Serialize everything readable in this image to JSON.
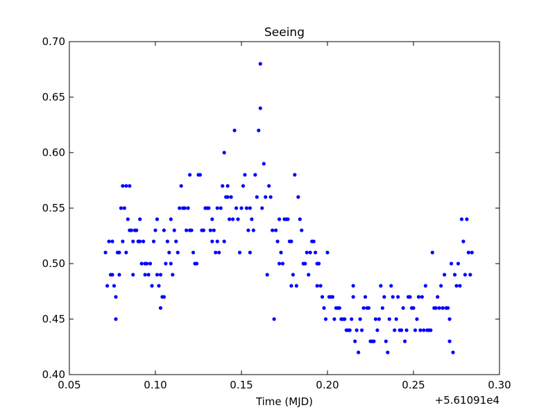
{
  "chart_data": {
    "type": "scatter",
    "title": "Seeing",
    "xlabel": "Time (MJD)",
    "ylabel": "",
    "x_offset_label": "+5.61091e4",
    "xlim": [
      0.05,
      0.3
    ],
    "ylim": [
      0.4,
      0.7
    ],
    "xticks": [
      0.05,
      0.1,
      0.15,
      0.2,
      0.25,
      0.3
    ],
    "yticks": [
      0.4,
      0.45,
      0.5,
      0.55,
      0.6,
      0.65,
      0.7
    ],
    "xtick_labels": [
      "0.05",
      "0.10",
      "0.15",
      "0.20",
      "0.25",
      "0.30"
    ],
    "ytick_labels": [
      "0.40",
      "0.45",
      "0.50",
      "0.55",
      "0.60",
      "0.65",
      "0.70"
    ],
    "grid": false,
    "marker_color": "#0000ff",
    "series": [
      {
        "points": [
          [
            0.071,
            0.51
          ],
          [
            0.072,
            0.48
          ],
          [
            0.073,
            0.52
          ],
          [
            0.074,
            0.49
          ],
          [
            0.075,
            0.49
          ],
          [
            0.075,
            0.52
          ],
          [
            0.076,
            0.48
          ],
          [
            0.077,
            0.45
          ],
          [
            0.077,
            0.47
          ],
          [
            0.078,
            0.51
          ],
          [
            0.079,
            0.49
          ],
          [
            0.079,
            0.51
          ],
          [
            0.08,
            0.55
          ],
          [
            0.081,
            0.57
          ],
          [
            0.081,
            0.52
          ],
          [
            0.082,
            0.55
          ],
          [
            0.083,
            0.51
          ],
          [
            0.083,
            0.57
          ],
          [
            0.084,
            0.54
          ],
          [
            0.085,
            0.53
          ],
          [
            0.085,
            0.57
          ],
          [
            0.086,
            0.53
          ],
          [
            0.087,
            0.52
          ],
          [
            0.087,
            0.49
          ],
          [
            0.088,
            0.53
          ],
          [
            0.089,
            0.53
          ],
          [
            0.09,
            0.52
          ],
          [
            0.091,
            0.52
          ],
          [
            0.091,
            0.54
          ],
          [
            0.092,
            0.5
          ],
          [
            0.093,
            0.52
          ],
          [
            0.094,
            0.5
          ],
          [
            0.094,
            0.49
          ],
          [
            0.095,
            0.5
          ],
          [
            0.096,
            0.49
          ],
          [
            0.097,
            0.5
          ],
          [
            0.098,
            0.48
          ],
          [
            0.099,
            0.52
          ],
          [
            0.1,
            0.53
          ],
          [
            0.101,
            0.54
          ],
          [
            0.101,
            0.49
          ],
          [
            0.102,
            0.48
          ],
          [
            0.103,
            0.49
          ],
          [
            0.103,
            0.46
          ],
          [
            0.104,
            0.47
          ],
          [
            0.105,
            0.53
          ],
          [
            0.105,
            0.47
          ],
          [
            0.106,
            0.5
          ],
          [
            0.107,
            0.52
          ],
          [
            0.108,
            0.51
          ],
          [
            0.109,
            0.5
          ],
          [
            0.109,
            0.54
          ],
          [
            0.11,
            0.49
          ],
          [
            0.111,
            0.53
          ],
          [
            0.112,
            0.52
          ],
          [
            0.113,
            0.51
          ],
          [
            0.114,
            0.55
          ],
          [
            0.115,
            0.57
          ],
          [
            0.116,
            0.55
          ],
          [
            0.117,
            0.55
          ],
          [
            0.118,
            0.53
          ],
          [
            0.119,
            0.55
          ],
          [
            0.12,
            0.53
          ],
          [
            0.12,
            0.58
          ],
          [
            0.121,
            0.53
          ],
          [
            0.122,
            0.51
          ],
          [
            0.123,
            0.5
          ],
          [
            0.124,
            0.5
          ],
          [
            0.125,
            0.58
          ],
          [
            0.126,
            0.58
          ],
          [
            0.127,
            0.53
          ],
          [
            0.128,
            0.53
          ],
          [
            0.129,
            0.55
          ],
          [
            0.13,
            0.55
          ],
          [
            0.131,
            0.55
          ],
          [
            0.132,
            0.53
          ],
          [
            0.133,
            0.52
          ],
          [
            0.133,
            0.54
          ],
          [
            0.134,
            0.53
          ],
          [
            0.135,
            0.51
          ],
          [
            0.136,
            0.52
          ],
          [
            0.136,
            0.55
          ],
          [
            0.137,
            0.51
          ],
          [
            0.138,
            0.55
          ],
          [
            0.139,
            0.57
          ],
          [
            0.14,
            0.52
          ],
          [
            0.14,
            0.6
          ],
          [
            0.141,
            0.56
          ],
          [
            0.142,
            0.57
          ],
          [
            0.142,
            0.56
          ],
          [
            0.143,
            0.54
          ],
          [
            0.144,
            0.56
          ],
          [
            0.145,
            0.54
          ],
          [
            0.146,
            0.62
          ],
          [
            0.147,
            0.55
          ],
          [
            0.148,
            0.54
          ],
          [
            0.149,
            0.51
          ],
          [
            0.15,
            0.55
          ],
          [
            0.151,
            0.57
          ],
          [
            0.152,
            0.58
          ],
          [
            0.153,
            0.55
          ],
          [
            0.154,
            0.53
          ],
          [
            0.155,
            0.55
          ],
          [
            0.155,
            0.51
          ],
          [
            0.156,
            0.54
          ],
          [
            0.157,
            0.53
          ],
          [
            0.158,
            0.58
          ],
          [
            0.159,
            0.56
          ],
          [
            0.16,
            0.62
          ],
          [
            0.161,
            0.68
          ],
          [
            0.161,
            0.64
          ],
          [
            0.162,
            0.55
          ],
          [
            0.163,
            0.59
          ],
          [
            0.164,
            0.56
          ],
          [
            0.165,
            0.49
          ],
          [
            0.166,
            0.57
          ],
          [
            0.167,
            0.56
          ],
          [
            0.168,
            0.53
          ],
          [
            0.169,
            0.45
          ],
          [
            0.17,
            0.53
          ],
          [
            0.171,
            0.52
          ],
          [
            0.172,
            0.5
          ],
          [
            0.172,
            0.54
          ],
          [
            0.173,
            0.51
          ],
          [
            0.174,
            0.5
          ],
          [
            0.175,
            0.54
          ],
          [
            0.176,
            0.54
          ],
          [
            0.177,
            0.54
          ],
          [
            0.178,
            0.52
          ],
          [
            0.179,
            0.52
          ],
          [
            0.179,
            0.48
          ],
          [
            0.18,
            0.49
          ],
          [
            0.181,
            0.58
          ],
          [
            0.182,
            0.48
          ],
          [
            0.183,
            0.56
          ],
          [
            0.184,
            0.54
          ],
          [
            0.185,
            0.53
          ],
          [
            0.186,
            0.5
          ],
          [
            0.187,
            0.5
          ],
          [
            0.188,
            0.51
          ],
          [
            0.189,
            0.49
          ],
          [
            0.19,
            0.51
          ],
          [
            0.191,
            0.52
          ],
          [
            0.192,
            0.52
          ],
          [
            0.193,
            0.51
          ],
          [
            0.194,
            0.5
          ],
          [
            0.194,
            0.48
          ],
          [
            0.195,
            0.5
          ],
          [
            0.196,
            0.48
          ],
          [
            0.197,
            0.47
          ],
          [
            0.198,
            0.46
          ],
          [
            0.199,
            0.45
          ],
          [
            0.2,
            0.51
          ],
          [
            0.201,
            0.47
          ],
          [
            0.202,
            0.47
          ],
          [
            0.203,
            0.47
          ],
          [
            0.204,
            0.45
          ],
          [
            0.205,
            0.46
          ],
          [
            0.206,
            0.46
          ],
          [
            0.207,
            0.46
          ],
          [
            0.208,
            0.45
          ],
          [
            0.209,
            0.45
          ],
          [
            0.21,
            0.45
          ],
          [
            0.211,
            0.44
          ],
          [
            0.212,
            0.44
          ],
          [
            0.213,
            0.44
          ],
          [
            0.214,
            0.45
          ],
          [
            0.215,
            0.47
          ],
          [
            0.215,
            0.48
          ],
          [
            0.216,
            0.43
          ],
          [
            0.217,
            0.44
          ],
          [
            0.218,
            0.42
          ],
          [
            0.219,
            0.45
          ],
          [
            0.22,
            0.44
          ],
          [
            0.221,
            0.46
          ],
          [
            0.222,
            0.47
          ],
          [
            0.223,
            0.46
          ],
          [
            0.224,
            0.46
          ],
          [
            0.225,
            0.43
          ],
          [
            0.226,
            0.43
          ],
          [
            0.227,
            0.43
          ],
          [
            0.228,
            0.45
          ],
          [
            0.229,
            0.44
          ],
          [
            0.23,
            0.45
          ],
          [
            0.231,
            0.48
          ],
          [
            0.232,
            0.46
          ],
          [
            0.233,
            0.47
          ],
          [
            0.234,
            0.43
          ],
          [
            0.235,
            0.42
          ],
          [
            0.236,
            0.45
          ],
          [
            0.237,
            0.48
          ],
          [
            0.238,
            0.47
          ],
          [
            0.239,
            0.44
          ],
          [
            0.24,
            0.45
          ],
          [
            0.241,
            0.47
          ],
          [
            0.242,
            0.44
          ],
          [
            0.243,
            0.44
          ],
          [
            0.244,
            0.46
          ],
          [
            0.245,
            0.43
          ],
          [
            0.246,
            0.44
          ],
          [
            0.247,
            0.47
          ],
          [
            0.248,
            0.47
          ],
          [
            0.249,
            0.46
          ],
          [
            0.25,
            0.46
          ],
          [
            0.251,
            0.44
          ],
          [
            0.252,
            0.45
          ],
          [
            0.253,
            0.47
          ],
          [
            0.254,
            0.44
          ],
          [
            0.255,
            0.47
          ],
          [
            0.256,
            0.44
          ],
          [
            0.257,
            0.48
          ],
          [
            0.258,
            0.44
          ],
          [
            0.259,
            0.44
          ],
          [
            0.26,
            0.44
          ],
          [
            0.261,
            0.51
          ],
          [
            0.262,
            0.46
          ],
          [
            0.263,
            0.46
          ],
          [
            0.264,
            0.47
          ],
          [
            0.265,
            0.46
          ],
          [
            0.266,
            0.48
          ],
          [
            0.267,
            0.46
          ],
          [
            0.268,
            0.49
          ],
          [
            0.269,
            0.46
          ],
          [
            0.27,
            0.46
          ],
          [
            0.271,
            0.45
          ],
          [
            0.271,
            0.43
          ],
          [
            0.272,
            0.5
          ],
          [
            0.273,
            0.42
          ],
          [
            0.274,
            0.49
          ],
          [
            0.275,
            0.48
          ],
          [
            0.276,
            0.5
          ],
          [
            0.277,
            0.48
          ],
          [
            0.278,
            0.54
          ],
          [
            0.279,
            0.52
          ],
          [
            0.28,
            0.49
          ],
          [
            0.281,
            0.54
          ],
          [
            0.282,
            0.51
          ],
          [
            0.283,
            0.49
          ],
          [
            0.284,
            0.51
          ]
        ]
      }
    ]
  }
}
